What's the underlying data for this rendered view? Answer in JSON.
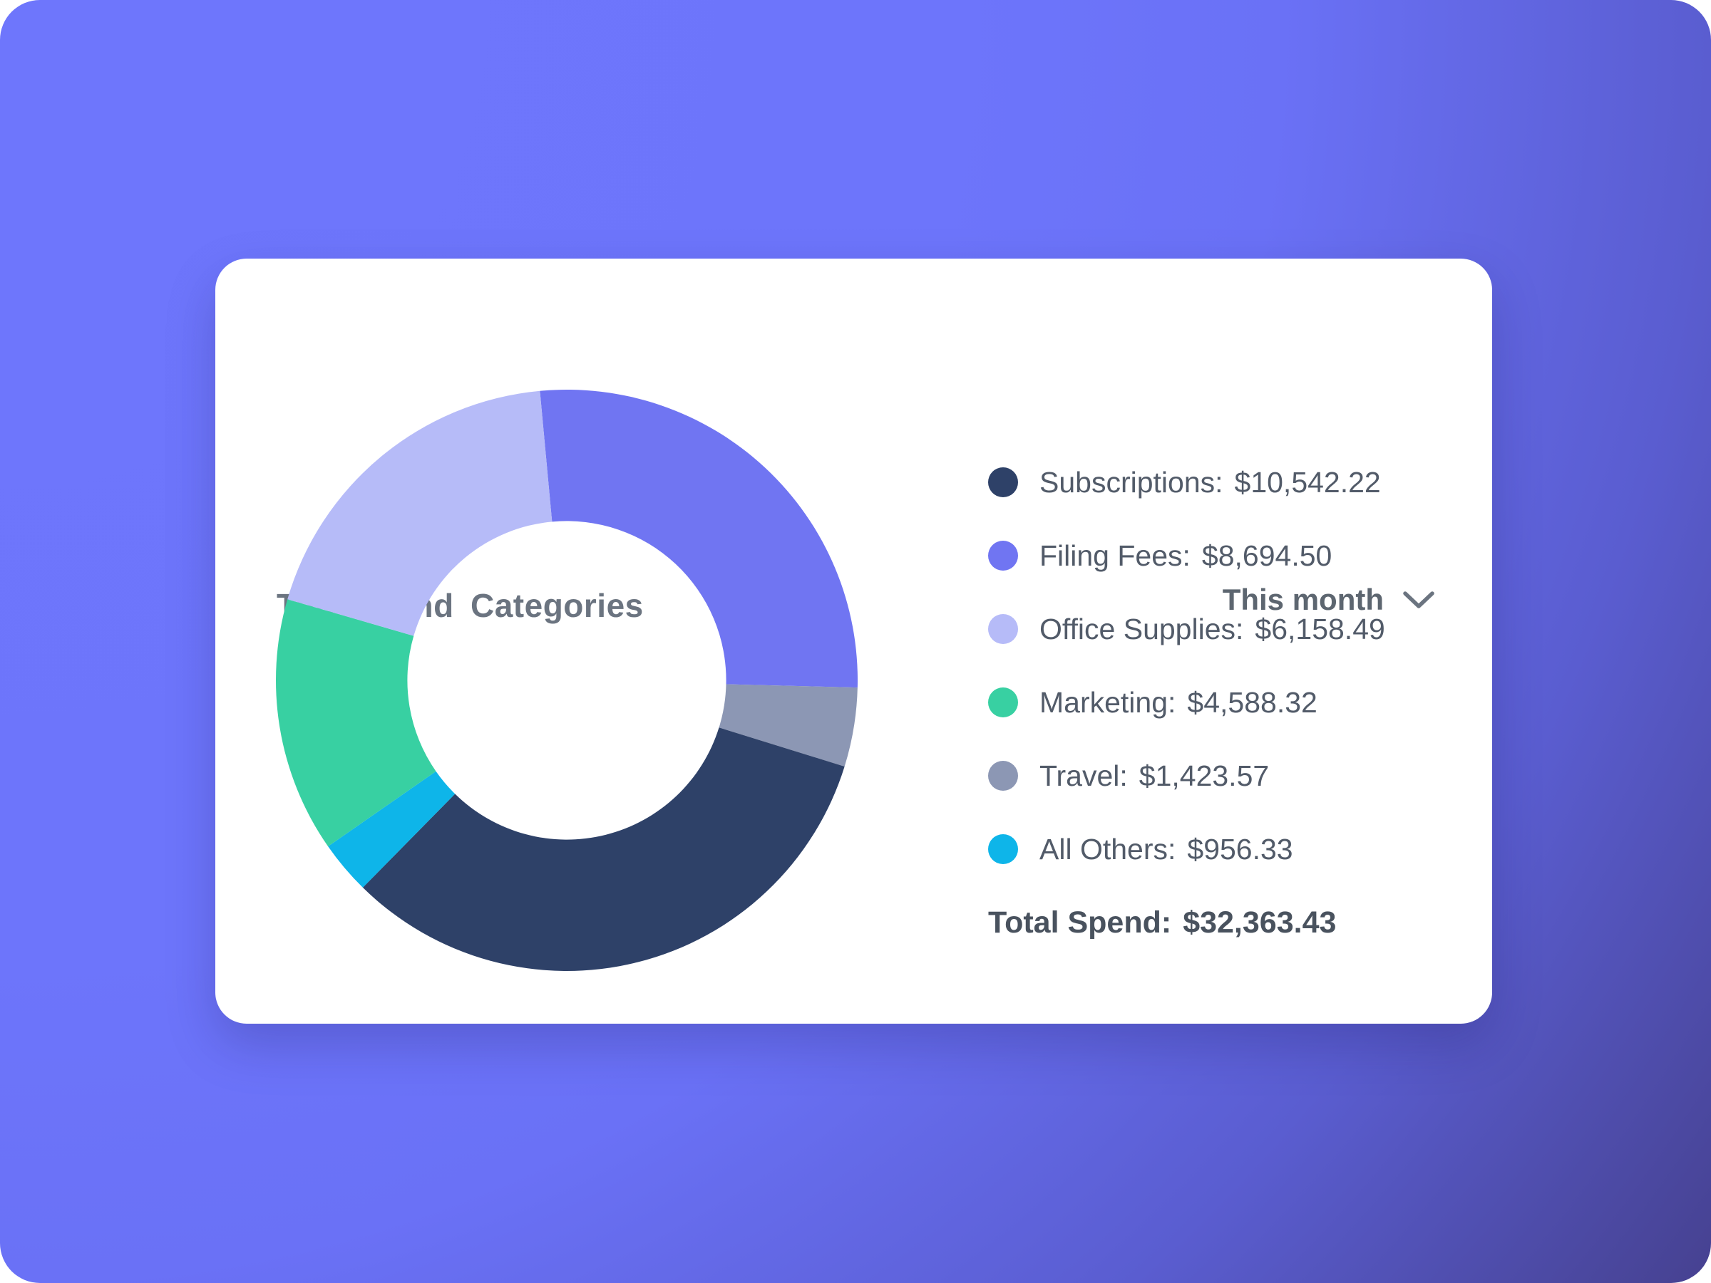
{
  "theme": {
    "background_gradient": [
      "#6e76fc",
      "#5a5dd0",
      "#464190"
    ],
    "card_background": "#ffffff",
    "title_color": "#6b7480",
    "legend_text_color": "#525b69",
    "total_text_color": "#49525e"
  },
  "card": {
    "title": "Top Spend Categories",
    "period_selector": {
      "label": "This month",
      "icon": "chevron-down-icon"
    }
  },
  "chart_data": {
    "type": "pie",
    "subtype": "donut",
    "title": "Top Spend Categories",
    "period": "This month",
    "series": [
      {
        "label": "Subscriptions",
        "legend_label": "Subscriptions:",
        "value": 10542.22,
        "display": "$10,542.22",
        "color": "#2e4168",
        "percent": 32.6
      },
      {
        "label": "Filing Fees",
        "legend_label": "Filing Fees:",
        "value": 8694.5,
        "display": "$8,694.50",
        "color": "#7075f2",
        "percent": 26.9
      },
      {
        "label": "Office Supplies",
        "legend_label": "Office Supplies:",
        "value": 6158.49,
        "display": "$6,158.49",
        "color": "#b6bbf8",
        "percent": 19.0
      },
      {
        "label": "Marketing",
        "legend_label": "Marketing:",
        "value": 4588.32,
        "display": "$4,588.32",
        "color": "#38d0a2",
        "percent": 14.2
      },
      {
        "label": "Travel",
        "legend_label": "Travel:",
        "value": 1423.57,
        "display": "$1,423.57",
        "color": "#8c97b4",
        "percent": 4.4
      },
      {
        "label": "All Others",
        "legend_label": "All Others:",
        "value": 956.33,
        "display": "$956.33",
        "color": "#0eb5e9",
        "percent": 3.0
      }
    ],
    "draw_order": [
      1,
      4,
      0,
      5,
      3,
      2
    ],
    "start_angle_deg": -5.3,
    "direction": "clockwise",
    "inner_radius_ratio": 0.548,
    "legend_position": "right",
    "total": {
      "label": "Total Spend:",
      "value": 32363.43,
      "display": "$32,363.43"
    }
  }
}
